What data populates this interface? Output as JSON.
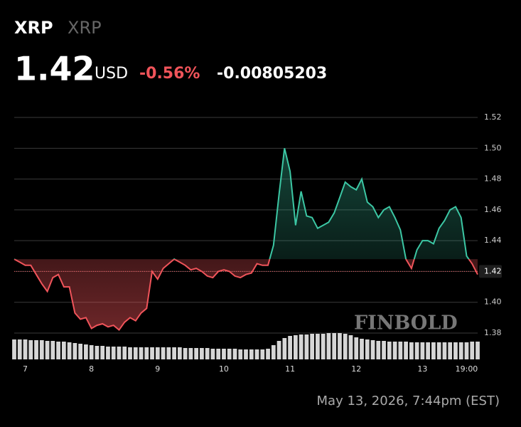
{
  "header": {
    "symbol": "XRP",
    "name": "XRP",
    "price": 1.42,
    "currency": "USD",
    "change_pct": "-0.56%",
    "change_abs": "-0.00805203"
  },
  "chart_data": {
    "type": "line",
    "values": [
      1.428,
      1.426,
      1.424,
      1.424,
      1.418,
      1.412,
      1.407,
      1.416,
      1.418,
      1.41,
      1.41,
      1.393,
      1.389,
      1.39,
      1.383,
      1.385,
      1.386,
      1.384,
      1.385,
      1.382,
      1.387,
      1.39,
      1.388,
      1.393,
      1.396,
      1.42,
      1.415,
      1.422,
      1.425,
      1.428,
      1.426,
      1.424,
      1.421,
      1.422,
      1.42,
      1.417,
      1.416,
      1.42,
      1.421,
      1.42,
      1.417,
      1.416,
      1.418,
      1.419,
      1.425,
      1.424,
      1.424,
      1.437,
      1.47,
      1.5,
      1.485,
      1.45,
      1.472,
      1.456,
      1.455,
      1.448,
      1.45,
      1.452,
      1.458,
      1.468,
      1.478,
      1.475,
      1.473,
      1.48,
      1.465,
      1.462,
      1.455,
      1.46,
      1.462,
      1.455,
      1.447,
      1.428,
      1.422,
      1.434,
      1.44,
      1.44,
      1.438,
      1.448,
      1.453,
      1.46,
      1.462,
      1.455,
      1.43,
      1.425,
      1.418
    ],
    "volume": [
      28,
      28,
      28,
      27,
      27,
      27,
      26,
      26,
      25,
      25,
      24,
      23,
      22,
      21,
      20,
      19,
      19,
      18,
      18,
      18,
      18,
      17,
      17,
      17,
      17,
      17,
      17,
      17,
      17,
      17,
      17,
      16,
      16,
      16,
      16,
      16,
      15,
      15,
      15,
      15,
      15,
      14,
      14,
      14,
      14,
      14,
      15,
      20,
      26,
      30,
      33,
      34,
      35,
      35,
      36,
      36,
      36,
      37,
      37,
      37,
      36,
      34,
      31,
      29,
      28,
      27,
      26,
      26,
      25,
      25,
      25,
      25,
      24,
      24,
      24,
      24,
      24,
      24,
      24,
      24,
      24,
      24,
      24,
      25,
      25
    ],
    "vlim": [
      0,
      40
    ],
    "xlim": [
      0,
      84
    ],
    "xticks": [
      {
        "value": 2,
        "label": "7"
      },
      {
        "value": 14,
        "label": "8"
      },
      {
        "value": 26,
        "label": "9"
      },
      {
        "value": 38,
        "label": "10"
      },
      {
        "value": 50,
        "label": "11"
      },
      {
        "value": 62,
        "label": "12"
      },
      {
        "value": 74,
        "label": "13"
      },
      {
        "value": 82,
        "label": "19:00"
      }
    ],
    "ylim": [
      1.37,
      1.53
    ],
    "yticks": [
      1.38,
      1.4,
      1.42,
      1.44,
      1.46,
      1.48,
      1.5,
      1.52
    ],
    "yticks_labels": [
      "1.38",
      "1.40",
      "1.42",
      "1.44",
      "1.46",
      "1.48",
      "1.50",
      "1.52"
    ],
    "baseline": 1.428,
    "up_color": "#3cc7a4",
    "down_color": "#f0545a",
    "grid": true
  },
  "watermark": "FINBOLD",
  "timestamp": "May 13, 2026, 7:44pm (EST)"
}
